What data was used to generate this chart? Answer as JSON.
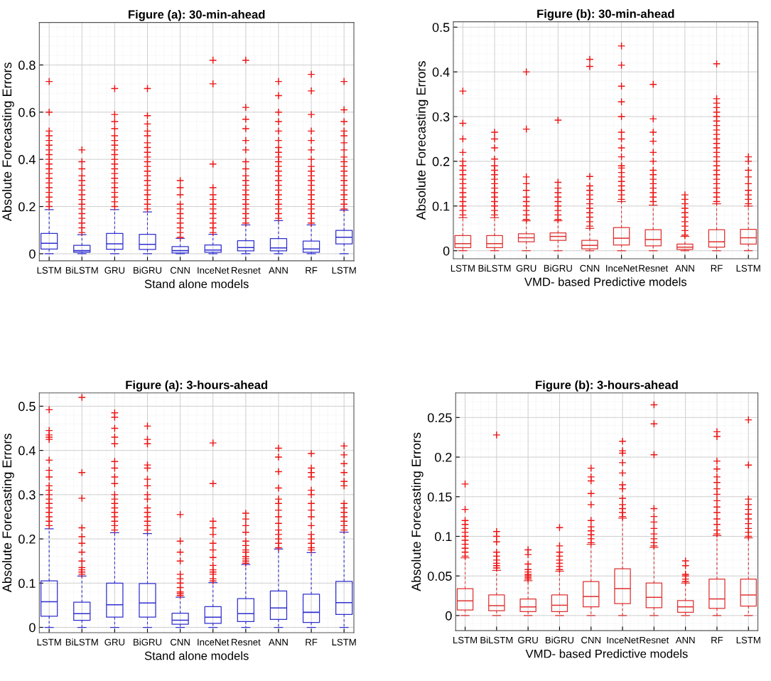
{
  "chart_data": [
    {
      "type": "box",
      "title": "Figure (a): 30-min-ahead",
      "xlabel": "Stand alone models",
      "ylabel": "Absolute Forecasting Errors",
      "categories": [
        "LSTM",
        "BiLSTM",
        "GRU",
        "BiGRU",
        "CNN",
        "InceNet",
        "Resnet",
        "ANN",
        "RF",
        "LSTM"
      ],
      "ylim": [
        -0.03,
        0.98
      ],
      "yticks": [
        0,
        0.2,
        0.4,
        0.6,
        0.8
      ],
      "grid": true,
      "series": [
        {
          "color": "#2f2fd0",
          "boxes": [
            {
              "low": 0,
              "q1": 0.02,
              "median": 0.044,
              "q3": 0.086,
              "high": 0.187,
              "outliers": [
                0.2,
                0.22,
                0.24,
                0.26,
                0.28,
                0.3,
                0.32,
                0.34,
                0.36,
                0.38,
                0.4,
                0.42,
                0.44,
                0.46,
                0.48,
                0.5,
                0.52,
                0.6,
                0.73
              ]
            },
            {
              "low": 0,
              "q1": 0.006,
              "median": 0.013,
              "q3": 0.036,
              "high": 0.081,
              "outliers": [
                0.09,
                0.11,
                0.13,
                0.15,
                0.17,
                0.19,
                0.21,
                0.23,
                0.25,
                0.27,
                0.29,
                0.31,
                0.33,
                0.36,
                0.39,
                0.44
              ]
            },
            {
              "low": 0,
              "q1": 0.019,
              "median": 0.042,
              "q3": 0.086,
              "high": 0.187,
              "outliers": [
                0.2,
                0.22,
                0.24,
                0.26,
                0.28,
                0.3,
                0.32,
                0.34,
                0.36,
                0.38,
                0.4,
                0.42,
                0.44,
                0.46,
                0.48,
                0.5,
                0.53,
                0.56,
                0.59,
                0.7
              ]
            },
            {
              "low": 0,
              "q1": 0.018,
              "median": 0.04,
              "q3": 0.082,
              "high": 0.177,
              "outliers": [
                0.19,
                0.21,
                0.23,
                0.25,
                0.27,
                0.29,
                0.31,
                0.33,
                0.35,
                0.37,
                0.39,
                0.41,
                0.43,
                0.45,
                0.47,
                0.5,
                0.52,
                0.55,
                0.585,
                0.7
              ]
            },
            {
              "low": 0,
              "q1": 0.003,
              "median": 0.013,
              "q3": 0.03,
              "high": 0.065,
              "outliers": [
                0.07,
                0.09,
                0.11,
                0.13,
                0.15,
                0.17,
                0.19,
                0.21,
                0.25,
                0.28,
                0.31
              ]
            },
            {
              "low": 0,
              "q1": 0.006,
              "median": 0.016,
              "q3": 0.037,
              "high": 0.082,
              "outliers": [
                0.09,
                0.11,
                0.13,
                0.15,
                0.17,
                0.19,
                0.21,
                0.23,
                0.25,
                0.28,
                0.38,
                0.72,
                0.82
              ]
            },
            {
              "low": 0,
              "q1": 0.012,
              "median": 0.026,
              "q3": 0.055,
              "high": 0.122,
              "outliers": [
                0.13,
                0.15,
                0.17,
                0.19,
                0.21,
                0.23,
                0.25,
                0.27,
                0.29,
                0.31,
                0.33,
                0.36,
                0.39,
                0.44,
                0.48,
                0.53,
                0.57,
                0.62,
                0.82
              ]
            },
            {
              "low": 0,
              "q1": 0.012,
              "median": 0.025,
              "q3": 0.064,
              "high": 0.14,
              "outliers": [
                0.15,
                0.17,
                0.19,
                0.21,
                0.23,
                0.25,
                0.27,
                0.29,
                0.31,
                0.33,
                0.35,
                0.37,
                0.39,
                0.41,
                0.43,
                0.45,
                0.48,
                0.52,
                0.56,
                0.6,
                0.67,
                0.73
              ]
            },
            {
              "low": 0,
              "q1": 0.006,
              "median": 0.02,
              "q3": 0.054,
              "high": 0.122,
              "outliers": [
                0.13,
                0.15,
                0.17,
                0.19,
                0.21,
                0.23,
                0.25,
                0.27,
                0.29,
                0.31,
                0.33,
                0.35,
                0.37,
                0.4,
                0.44,
                0.48,
                0.52,
                0.59,
                0.69,
                0.76
              ]
            },
            {
              "low": 0,
              "q1": 0.042,
              "median": 0.07,
              "q3": 0.099,
              "high": 0.185,
              "outliers": [
                0.19,
                0.21,
                0.23,
                0.25,
                0.27,
                0.29,
                0.31,
                0.33,
                0.35,
                0.37,
                0.39,
                0.41,
                0.44,
                0.47,
                0.5,
                0.52,
                0.56,
                0.61,
                0.73
              ]
            }
          ]
        }
      ]
    },
    {
      "type": "box",
      "title": "Figure (b): 30-min-ahead",
      "xlabel": "VMD- based Predictive models",
      "ylabel": "Absolute Forecasting Errors",
      "categories": [
        "LSTM",
        "BiLSTM",
        "GRU",
        "BiGRU",
        "CNN",
        "InceNet",
        "Resnet",
        "ANN",
        "RF",
        "LSTM"
      ],
      "ylim": [
        -0.018,
        0.512
      ],
      "yticks": [
        0,
        0.1,
        0.2,
        0.3,
        0.4,
        0.5
      ],
      "grid": true,
      "series": [
        {
          "color": "#e03030",
          "boxes": [
            {
              "low": 0,
              "q1": 0.007,
              "median": 0.016,
              "q3": 0.034,
              "high": 0.074,
              "outliers": [
                0.08,
                0.09,
                0.1,
                0.11,
                0.12,
                0.13,
                0.14,
                0.15,
                0.16,
                0.17,
                0.18,
                0.19,
                0.2,
                0.22,
                0.25,
                0.285,
                0.357
              ]
            },
            {
              "low": 0,
              "q1": 0.007,
              "median": 0.016,
              "q3": 0.034,
              "high": 0.074,
              "outliers": [
                0.08,
                0.09,
                0.1,
                0.11,
                0.12,
                0.13,
                0.14,
                0.15,
                0.16,
                0.17,
                0.18,
                0.19,
                0.205,
                0.23,
                0.25,
                0.265
              ]
            },
            {
              "low": 0,
              "q1": 0.02,
              "median": 0.029,
              "q3": 0.038,
              "high": 0.067,
              "outliers": [
                0.07,
                0.08,
                0.09,
                0.1,
                0.11,
                0.12,
                0.135,
                0.15,
                0.165,
                0.272,
                0.4
              ]
            },
            {
              "low": 0,
              "q1": 0.023,
              "median": 0.032,
              "q3": 0.04,
              "high": 0.067,
              "outliers": [
                0.07,
                0.08,
                0.09,
                0.1,
                0.11,
                0.12,
                0.13,
                0.14,
                0.153,
                0.292
              ]
            },
            {
              "low": 0,
              "q1": 0.004,
              "median": 0.012,
              "q3": 0.023,
              "high": 0.05,
              "outliers": [
                0.055,
                0.065,
                0.075,
                0.085,
                0.095,
                0.105,
                0.115,
                0.125,
                0.135,
                0.145,
                0.166,
                0.412,
                0.428
              ]
            },
            {
              "low": 0,
              "q1": 0.013,
              "median": 0.028,
              "q3": 0.052,
              "high": 0.11,
              "outliers": [
                0.115,
                0.125,
                0.135,
                0.145,
                0.155,
                0.165,
                0.175,
                0.185,
                0.19,
                0.21,
                0.23,
                0.25,
                0.265,
                0.3,
                0.333,
                0.368,
                0.415,
                0.458
              ]
            },
            {
              "low": 0,
              "q1": 0.011,
              "median": 0.025,
              "q3": 0.047,
              "high": 0.102,
              "outliers": [
                0.11,
                0.12,
                0.13,
                0.14,
                0.15,
                0.16,
                0.17,
                0.18,
                0.2,
                0.22,
                0.245,
                0.265,
                0.295,
                0.372
              ]
            },
            {
              "low": 0,
              "q1": 0.003,
              "median": 0.008,
              "q3": 0.015,
              "high": 0.032,
              "outliers": [
                0.035,
                0.045,
                0.055,
                0.065,
                0.075,
                0.085,
                0.095,
                0.105,
                0.115,
                0.125
              ]
            },
            {
              "low": 0,
              "q1": 0.008,
              "median": 0.02,
              "q3": 0.047,
              "high": 0.105,
              "outliers": [
                0.11,
                0.12,
                0.13,
                0.14,
                0.15,
                0.16,
                0.17,
                0.18,
                0.19,
                0.2,
                0.21,
                0.22,
                0.23,
                0.24,
                0.25,
                0.26,
                0.27,
                0.28,
                0.29,
                0.3,
                0.31,
                0.32,
                0.33,
                0.34,
                0.418
              ]
            },
            {
              "low": 0,
              "q1": 0.015,
              "median": 0.029,
              "q3": 0.048,
              "high": 0.1,
              "outliers": [
                0.105,
                0.115,
                0.125,
                0.135,
                0.15,
                0.165,
                0.18,
                0.2,
                0.21
              ]
            }
          ]
        }
      ]
    },
    {
      "type": "box",
      "title": "Figure (a): 3-hours-ahead",
      "xlabel": "Stand alone models",
      "ylabel": "Absolute Forecasting Errors",
      "categories": [
        "LSTM",
        "BiLSTM",
        "GRU",
        "BiGRU",
        "CNN",
        "InceNet",
        "Resnet",
        "ANN",
        "RF",
        "LSTM"
      ],
      "ylim": [
        -0.012,
        0.53
      ],
      "yticks": [
        0,
        0.1,
        0.2,
        0.3,
        0.4,
        0.5
      ],
      "grid": true,
      "series": [
        {
          "color": "#2f2fd0",
          "boxes": [
            {
              "low": 0,
              "q1": 0.025,
              "median": 0.058,
              "q3": 0.105,
              "high": 0.223,
              "outliers": [
                0.23,
                0.24,
                0.25,
                0.26,
                0.27,
                0.28,
                0.29,
                0.3,
                0.31,
                0.32,
                0.34,
                0.355,
                0.378,
                0.425,
                0.43,
                0.435,
                0.445,
                0.492
              ]
            },
            {
              "low": 0,
              "q1": 0.016,
              "median": 0.031,
              "q3": 0.057,
              "high": 0.116,
              "outliers": [
                0.12,
                0.125,
                0.13,
                0.135,
                0.15,
                0.17,
                0.19,
                0.205,
                0.225,
                0.292,
                0.35,
                0.52
              ]
            },
            {
              "low": 0,
              "q1": 0.023,
              "median": 0.051,
              "q3": 0.1,
              "high": 0.214,
              "outliers": [
                0.22,
                0.23,
                0.24,
                0.25,
                0.26,
                0.27,
                0.28,
                0.29,
                0.3,
                0.325,
                0.34,
                0.36,
                0.375,
                0.415,
                0.43,
                0.45,
                0.475,
                0.485
              ]
            },
            {
              "low": 0,
              "q1": 0.023,
              "median": 0.055,
              "q3": 0.099,
              "high": 0.212,
              "outliers": [
                0.22,
                0.23,
                0.24,
                0.25,
                0.26,
                0.27,
                0.29,
                0.3,
                0.32,
                0.335,
                0.36,
                0.367,
                0.415,
                0.425,
                0.455
              ]
            },
            {
              "low": 0,
              "q1": 0.007,
              "median": 0.016,
              "q3": 0.032,
              "high": 0.068,
              "outliers": [
                0.072,
                0.076,
                0.08,
                0.09,
                0.1,
                0.11,
                0.12,
                0.15,
                0.17,
                0.195,
                0.255
              ]
            },
            {
              "low": 0,
              "q1": 0.009,
              "median": 0.023,
              "q3": 0.047,
              "high": 0.101,
              "outliers": [
                0.105,
                0.11,
                0.12,
                0.125,
                0.13,
                0.14,
                0.158,
                0.175,
                0.19,
                0.21,
                0.225,
                0.24,
                0.325,
                0.417
              ]
            },
            {
              "low": 0,
              "q1": 0.013,
              "median": 0.031,
              "q3": 0.065,
              "high": 0.142,
              "outliers": [
                0.145,
                0.15,
                0.155,
                0.16,
                0.17,
                0.175,
                0.185,
                0.195,
                0.215,
                0.23,
                0.245,
                0.258
              ]
            },
            {
              "low": 0,
              "q1": 0.018,
              "median": 0.044,
              "q3": 0.082,
              "high": 0.177,
              "outliers": [
                0.18,
                0.19,
                0.2,
                0.21,
                0.22,
                0.235,
                0.25,
                0.265,
                0.28,
                0.29,
                0.315,
                0.352,
                0.385,
                0.405
              ]
            },
            {
              "low": 0,
              "q1": 0.011,
              "median": 0.034,
              "q3": 0.075,
              "high": 0.169,
              "outliers": [
                0.175,
                0.18,
                0.19,
                0.2,
                0.21,
                0.23,
                0.25,
                0.265,
                0.28,
                0.3,
                0.31,
                0.34,
                0.35,
                0.36,
                0.393
              ]
            },
            {
              "low": 0,
              "q1": 0.029,
              "median": 0.056,
              "q3": 0.104,
              "high": 0.215,
              "outliers": [
                0.22,
                0.23,
                0.24,
                0.25,
                0.26,
                0.27,
                0.28,
                0.32,
                0.33,
                0.35,
                0.37,
                0.39,
                0.41
              ]
            }
          ]
        }
      ]
    },
    {
      "type": "box",
      "title": "Figure (b): 3-hours-ahead",
      "xlabel": "VMD- based Predictive models",
      "ylabel": "Absolute Forecasting Errors",
      "categories": [
        "LSTM",
        "BiLSTM",
        "GRU",
        "BiGRU",
        "CNN",
        "InceNet",
        "Resnet",
        "ANN",
        "RF",
        "LSTM"
      ],
      "ylim": [
        -0.019,
        0.281
      ],
      "yticks": [
        0,
        0.05,
        0.1,
        0.15,
        0.2,
        0.25
      ],
      "grid": true,
      "series": [
        {
          "color": "#e03030",
          "boxes": [
            {
              "low": 0,
              "q1": 0.007,
              "median": 0.0186,
              "q3": 0.034,
              "high": 0.073,
              "outliers": [
                0.075,
                0.08,
                0.085,
                0.09,
                0.095,
                0.1,
                0.105,
                0.11,
                0.115,
                0.12,
                0.134,
                0.166
              ]
            },
            {
              "low": 0,
              "q1": 0.006,
              "median": 0.0125,
              "q3": 0.026,
              "high": 0.057,
              "outliers": [
                0.06,
                0.063,
                0.066,
                0.07,
                0.075,
                0.08,
                0.093,
                0.1,
                0.106,
                0.228
              ]
            },
            {
              "low": 0,
              "q1": 0.005,
              "median": 0.011,
              "q3": 0.021,
              "high": 0.044,
              "outliers": [
                0.046,
                0.048,
                0.05,
                0.052,
                0.055,
                0.058,
                0.065,
                0.077,
                0.083
              ]
            },
            {
              "low": 0,
              "q1": 0.005,
              "median": 0.013,
              "q3": 0.026,
              "high": 0.056,
              "outliers": [
                0.058,
                0.062,
                0.066,
                0.07,
                0.075,
                0.08,
                0.088,
                0.111
              ]
            },
            {
              "low": 0,
              "q1": 0.011,
              "median": 0.024,
              "q3": 0.043,
              "high": 0.09,
              "outliers": [
                0.092,
                0.097,
                0.102,
                0.107,
                0.112,
                0.12,
                0.14,
                0.154,
                0.17,
                0.175,
                0.186
              ]
            },
            {
              "low": 0,
              "q1": 0.015,
              "median": 0.034,
              "q3": 0.059,
              "high": 0.123,
              "outliers": [
                0.125,
                0.13,
                0.135,
                0.14,
                0.148,
                0.16,
                0.165,
                0.18,
                0.193,
                0.205,
                0.208,
                0.22
              ]
            },
            {
              "low": 0,
              "q1": 0.01,
              "median": 0.023,
              "q3": 0.041,
              "high": 0.086,
              "outliers": [
                0.088,
                0.092,
                0.097,
                0.103,
                0.11,
                0.118,
                0.125,
                0.135,
                0.203,
                0.242,
                0.266
              ]
            },
            {
              "low": 0,
              "q1": 0.004,
              "median": 0.011,
              "q3": 0.019,
              "high": 0.041,
              "outliers": [
                0.043,
                0.046,
                0.05,
                0.052,
                0.063,
                0.069
              ]
            },
            {
              "low": 0,
              "q1": 0.009,
              "median": 0.021,
              "q3": 0.046,
              "high": 0.101,
              "outliers": [
                0.103,
                0.108,
                0.115,
                0.122,
                0.13,
                0.137,
                0.145,
                0.153,
                0.16,
                0.168,
                0.175,
                0.185,
                0.195,
                0.226,
                0.232
              ]
            },
            {
              "low": 0,
              "q1": 0.012,
              "median": 0.026,
              "q3": 0.046,
              "high": 0.098,
              "outliers": [
                0.1,
                0.105,
                0.11,
                0.116,
                0.122,
                0.128,
                0.134,
                0.14,
                0.147,
                0.19,
                0.247
              ]
            }
          ]
        }
      ]
    }
  ]
}
